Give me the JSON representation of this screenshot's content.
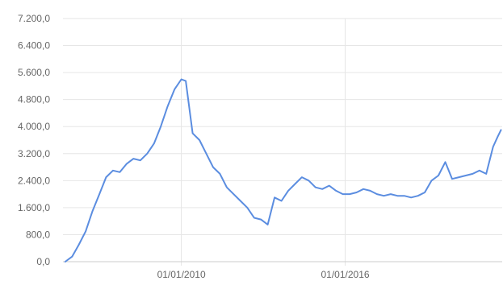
{
  "chart_data": {
    "type": "line",
    "title": "",
    "xlabel": "",
    "ylabel": "",
    "ylim": [
      0,
      7200
    ],
    "xlim": [
      "2005-09-01",
      "2021-10-01"
    ],
    "grid": true,
    "legend": "none",
    "line_color": "#5b8de0",
    "y_ticks": [
      {
        "value": 0,
        "label": "0,0"
      },
      {
        "value": 800,
        "label": "800,0"
      },
      {
        "value": 1600,
        "label": "1.600,0"
      },
      {
        "value": 2400,
        "label": "2.400,0"
      },
      {
        "value": 3200,
        "label": "3.200,0"
      },
      {
        "value": 4000,
        "label": "4.000,0"
      },
      {
        "value": 4800,
        "label": "4.800,0"
      },
      {
        "value": 5600,
        "label": "5.600,0"
      },
      {
        "value": 6400,
        "label": "6.400,0"
      },
      {
        "value": 7200,
        "label": "7.200,0"
      }
    ],
    "x_ticks": [
      {
        "value": "2010-01-01",
        "label": "01/01/2010"
      },
      {
        "value": "2016-01-01",
        "label": "01/01/2016"
      }
    ],
    "series": [
      {
        "x": [
          "2005-10-01",
          "2006-01-01",
          "2006-04-01",
          "2006-07-01",
          "2006-10-01",
          "2007-01-01",
          "2007-04-01",
          "2007-07-01",
          "2007-10-01",
          "2008-01-01",
          "2008-04-01",
          "2008-07-01",
          "2008-10-01",
          "2009-01-01",
          "2009-04-01",
          "2009-07-01",
          "2009-10-01",
          "2010-01-01",
          "2010-03-01",
          "2010-06-01",
          "2010-09-01",
          "2010-12-01",
          "2011-03-01",
          "2011-06-01",
          "2011-09-01",
          "2011-12-01",
          "2012-03-01",
          "2012-06-01",
          "2012-09-01",
          "2012-12-01",
          "2013-03-01",
          "2013-06-01",
          "2013-09-01",
          "2013-12-01",
          "2014-03-01",
          "2014-06-01",
          "2014-09-01",
          "2014-12-01",
          "2015-03-01",
          "2015-06-01",
          "2015-09-01",
          "2015-12-01",
          "2016-03-01",
          "2016-06-01",
          "2016-09-01",
          "2016-12-01",
          "2017-03-01",
          "2017-06-01",
          "2017-09-01",
          "2017-12-01",
          "2018-03-01",
          "2018-06-01",
          "2018-09-01",
          "2018-12-01",
          "2019-03-01",
          "2019-06-01",
          "2019-09-01",
          "2019-12-01",
          "2020-03-01",
          "2020-06-01",
          "2020-09-01",
          "2020-12-01",
          "2021-03-01",
          "2021-06-01",
          "2021-08-01",
          "2021-09-15"
        ],
        "values": [
          0,
          150,
          500,
          900,
          1500,
          2000,
          2500,
          2700,
          2650,
          2900,
          3050,
          3000,
          3200,
          3500,
          4000,
          4600,
          5100,
          5400,
          5350,
          3800,
          3600,
          3200,
          2800,
          2600,
          2200,
          2000,
          1800,
          1600,
          1300,
          1250,
          1100,
          1900,
          1800,
          2100,
          2300,
          2500,
          2400,
          2200,
          2150,
          2250,
          2100,
          2000,
          2000,
          2050,
          2150,
          2100,
          2000,
          1950,
          2000,
          1950,
          1950,
          1900,
          1950,
          2050,
          2400,
          2550,
          2950,
          2450,
          2500,
          2550,
          2600,
          2700,
          2600,
          3400,
          3700,
          3900
        ]
      }
    ]
  }
}
